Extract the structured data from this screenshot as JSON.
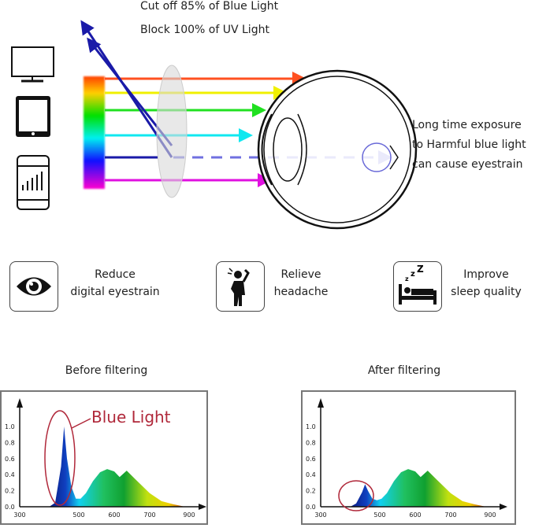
{
  "header": {
    "line1": "Cut off 85% of Blue Light",
    "line2": "Block 100% of UV Light"
  },
  "devices": [
    {
      "icon": "monitor-icon"
    },
    {
      "icon": "tablet-icon"
    },
    {
      "icon": "smartphone-icon"
    }
  ],
  "eye_note": [
    "Long time exposure",
    "to Harmful blue light",
    "can cause eyestrain"
  ],
  "benefits": [
    {
      "icon": "eye-icon",
      "line1": "Reduce",
      "line2": "digital eyestrain"
    },
    {
      "icon": "headache-person-icon",
      "line1": "Relieve",
      "line2": "headache"
    },
    {
      "icon": "sleeping-bed-icon",
      "line1": "Improve",
      "line2": "sleep quality"
    }
  ],
  "colors": {
    "blue_ray": "#1a1aa8",
    "dashed_ray": "#7070e0",
    "annotation": "#b0283a"
  },
  "chart_data": [
    {
      "type": "area",
      "title": "Before filtering",
      "annotation": "Blue Light",
      "x_ticks": [
        "300",
        "500",
        "600",
        "700",
        "900"
      ],
      "y_ticks": [
        "0.0",
        "0.2",
        "0.4",
        "0.6",
        "0.8",
        "1.0"
      ],
      "ylim": [
        0,
        1.1
      ],
      "x": [
        400,
        420,
        440,
        450,
        460,
        475,
        490,
        505,
        520,
        540,
        560,
        580,
        600,
        615,
        635,
        660,
        700,
        760,
        820,
        880
      ],
      "y": [
        0,
        0.05,
        0.5,
        1.0,
        0.6,
        0.25,
        0.1,
        0.1,
        0.17,
        0.32,
        0.43,
        0.47,
        0.44,
        0.37,
        0.45,
        0.34,
        0.17,
        0.07,
        0.03,
        0
      ]
    },
    {
      "type": "area",
      "title": "After filtering",
      "x_ticks": [
        "300",
        "500",
        "600",
        "700",
        "900"
      ],
      "y_ticks": [
        "0.0",
        "0.2",
        "0.4",
        "0.6",
        "0.8",
        "1.0"
      ],
      "ylim": [
        0,
        1.1
      ],
      "x": [
        400,
        420,
        440,
        450,
        460,
        475,
        490,
        505,
        520,
        540,
        560,
        580,
        600,
        615,
        635,
        660,
        700,
        760,
        820,
        880
      ],
      "y": [
        0,
        0.04,
        0.18,
        0.28,
        0.2,
        0.1,
        0.08,
        0.1,
        0.17,
        0.32,
        0.43,
        0.47,
        0.44,
        0.37,
        0.45,
        0.34,
        0.17,
        0.07,
        0.03,
        0
      ]
    }
  ]
}
